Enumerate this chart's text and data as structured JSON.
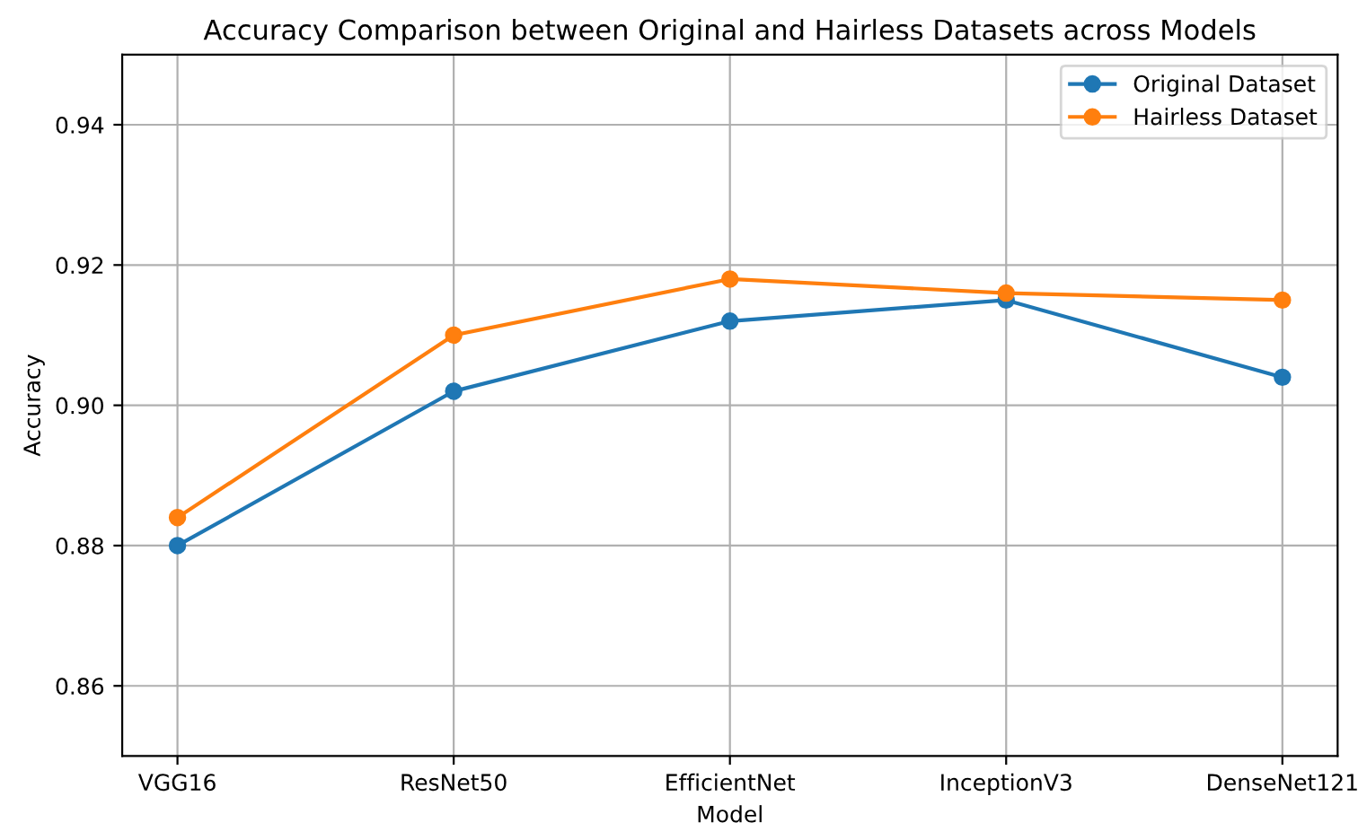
{
  "chart_data": {
    "type": "line",
    "title": "Accuracy Comparison between Original and Hairless Datasets across Models",
    "xlabel": "Model",
    "ylabel": "Accuracy",
    "categories": [
      "VGG16",
      "ResNet50",
      "EfficientNet",
      "InceptionV3",
      "DenseNet121"
    ],
    "series": [
      {
        "name": "Original Dataset",
        "color": "#1f77b4",
        "values": [
          0.88,
          0.902,
          0.912,
          0.915,
          0.904
        ]
      },
      {
        "name": "Hairless Dataset",
        "color": "#ff7f0e",
        "values": [
          0.884,
          0.91,
          0.918,
          0.916,
          0.915
        ]
      }
    ],
    "ylim": [
      0.85,
      0.95
    ],
    "yticks": [
      {
        "value": 0.86,
        "label": "0.86"
      },
      {
        "value": 0.88,
        "label": "0.88"
      },
      {
        "value": 0.9,
        "label": "0.90"
      },
      {
        "value": 0.92,
        "label": "0.92"
      },
      {
        "value": 0.94,
        "label": "0.94"
      }
    ],
    "grid": true,
    "legend": "top right",
    "marker": "circle",
    "line_style": "solid"
  }
}
